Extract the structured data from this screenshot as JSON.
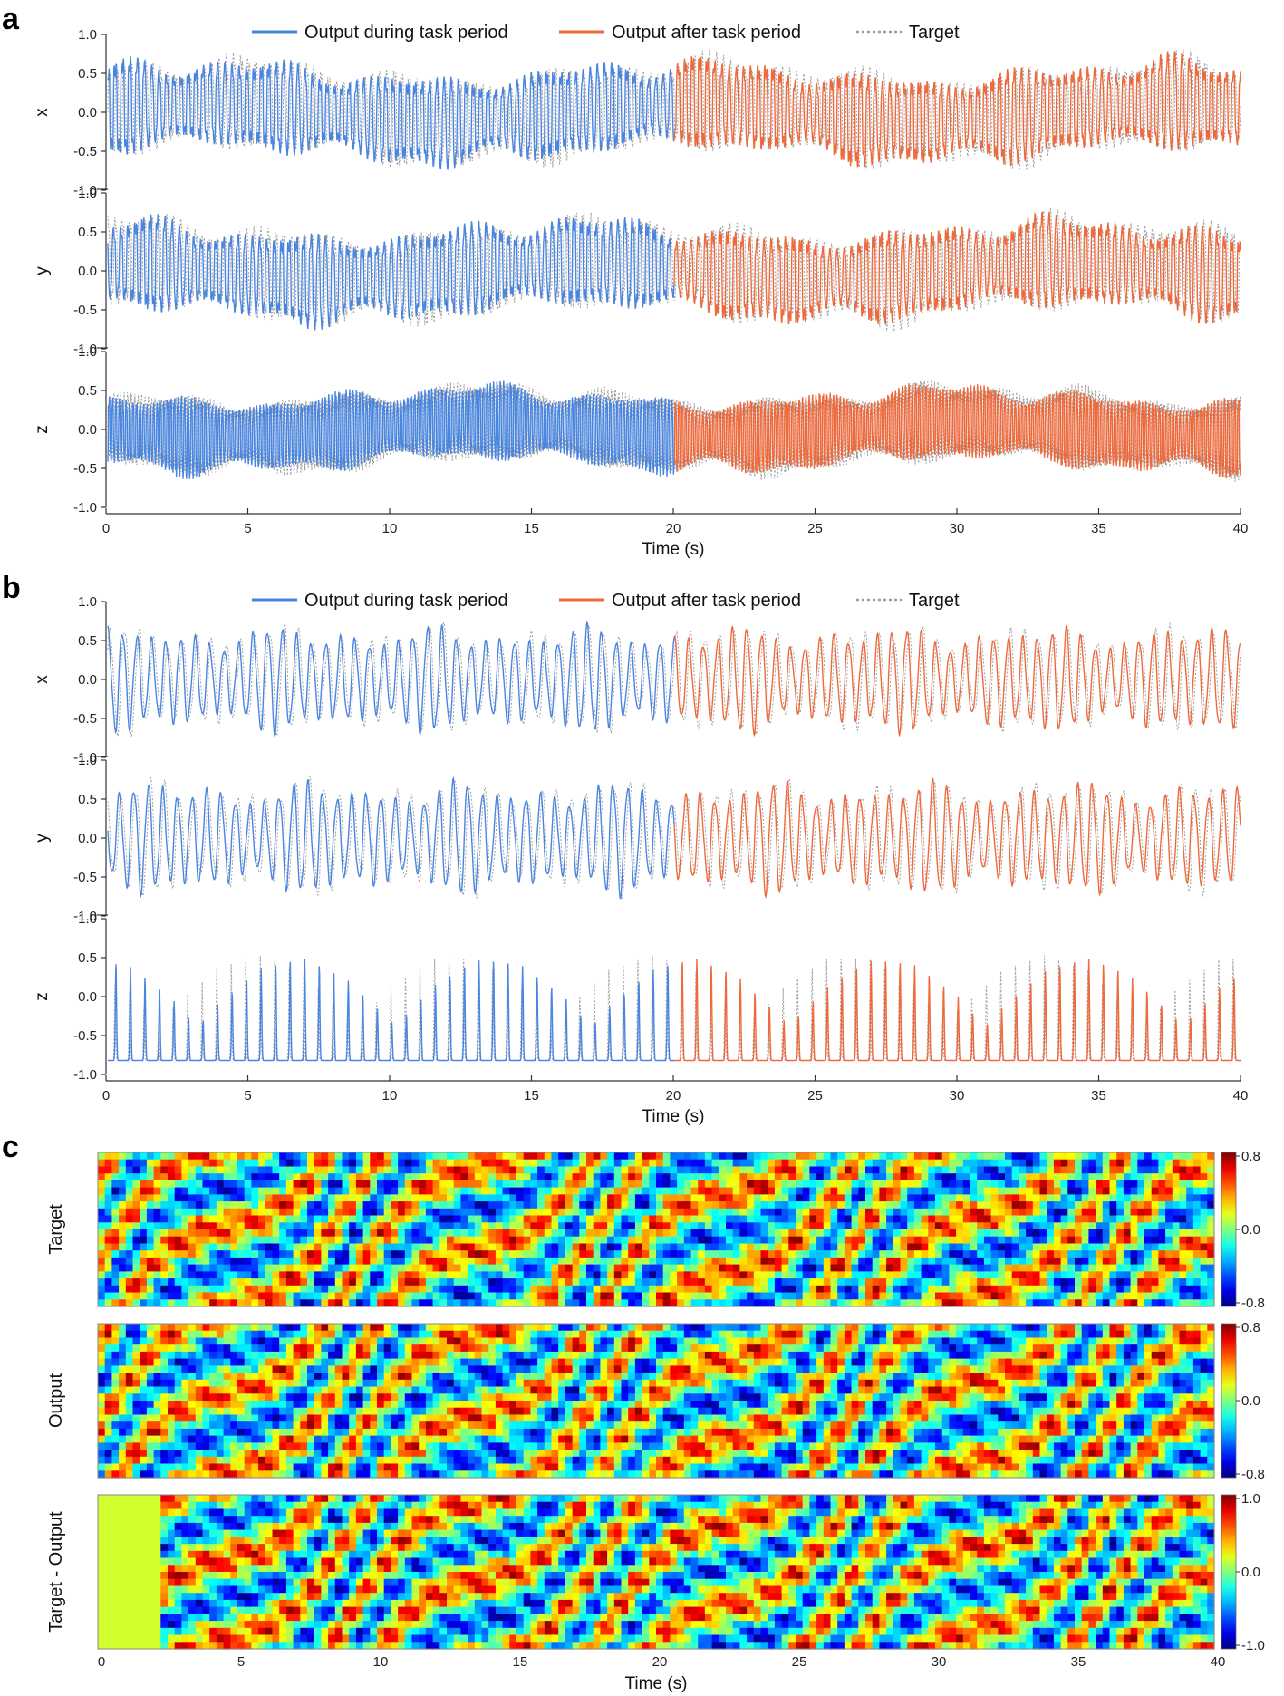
{
  "colors": {
    "during": "#4a86e0",
    "after": "#ee6a3c",
    "target": "#9e9e9e"
  },
  "chart_data": [
    {
      "panel": "a",
      "type": "line",
      "title": "",
      "legend": [
        "Output during task period",
        "Output after task period",
        "Target"
      ],
      "legend_position": "top",
      "xlabel": "Time (s)",
      "xlim": [
        0,
        40
      ],
      "xticks": [
        "0",
        "5",
        "10",
        "15",
        "20",
        "25",
        "30",
        "35",
        "40"
      ],
      "task_period_end": 20,
      "subplots": [
        {
          "ylabel": "x",
          "ylim": [
            -1.0,
            1.0
          ],
          "yticks": [
            "1.0",
            "0.5",
            "0.0",
            "-0.5",
            "-1.0"
          ],
          "cycles": 155,
          "amplitude": 0.62,
          "spikiness": "chaotic"
        },
        {
          "ylabel": "y",
          "ylim": [
            -1.0,
            1.0
          ],
          "yticks": [
            "1.0",
            "0.5",
            "0.0",
            "-0.5",
            "-1.0"
          ],
          "cycles": 155,
          "amplitude": 0.62,
          "spikiness": "chaotic"
        },
        {
          "ylabel": "z",
          "ylim": [
            -1.0,
            1.0
          ],
          "yticks": [
            "1.0",
            "0.5",
            "0.0",
            "-0.5",
            "-1.0"
          ],
          "cycles": 330,
          "amplitude": 0.52,
          "spikiness": "dense"
        }
      ]
    },
    {
      "panel": "b",
      "type": "line",
      "title": "",
      "legend": [
        "Output during task period",
        "Output after task period",
        "Target"
      ],
      "legend_position": "top",
      "xlabel": "Time (s)",
      "xlim": [
        0,
        40
      ],
      "xticks": [
        "0",
        "5",
        "10",
        "15",
        "20",
        "25",
        "30",
        "35",
        "40"
      ],
      "task_period_end": 20,
      "subplots": [
        {
          "ylabel": "x",
          "ylim": [
            -1.0,
            1.0
          ],
          "yticks": [
            "1.0",
            "0.5",
            "0.0",
            "-0.5",
            "-1.0"
          ],
          "cycles": 78,
          "amplitude": 0.68,
          "spikiness": "smooth"
        },
        {
          "ylabel": "y",
          "ylim": [
            -1.0,
            1.0
          ],
          "yticks": [
            "1.0",
            "0.5",
            "0.0",
            "-0.5",
            "-1.0"
          ],
          "cycles": 78,
          "amplitude": 0.72,
          "spikiness": "smooth"
        },
        {
          "ylabel": "z",
          "ylim": [
            -1.0,
            1.0
          ],
          "yticks": [
            "1.0",
            "0.5",
            "0.0",
            "-0.5",
            "-1.0"
          ],
          "cycles": 78,
          "baseline": -0.82,
          "spikiness": "spikes"
        }
      ]
    },
    {
      "panel": "c",
      "type": "heatmap",
      "title": "",
      "xlabel": "Time (s)",
      "xlim": [
        0,
        40
      ],
      "xticks": [
        "0",
        "5",
        "10",
        "15",
        "20",
        "25",
        "30",
        "35",
        "40"
      ],
      "subplots": [
        {
          "ylabel": "Target",
          "colorbar_ticks": [
            "0.8",
            "0.0",
            "-0.8"
          ],
          "range": [
            -0.8,
            0.8
          ]
        },
        {
          "ylabel": "Output",
          "colorbar_ticks": [
            "0.8",
            "0.0",
            "-0.8"
          ],
          "range": [
            -0.8,
            0.8
          ]
        },
        {
          "ylabel": "Target - Output",
          "colorbar_ticks": [
            "1.0",
            "0.0",
            "-1.0"
          ],
          "range": [
            -1.0,
            1.0
          ]
        }
      ]
    }
  ]
}
